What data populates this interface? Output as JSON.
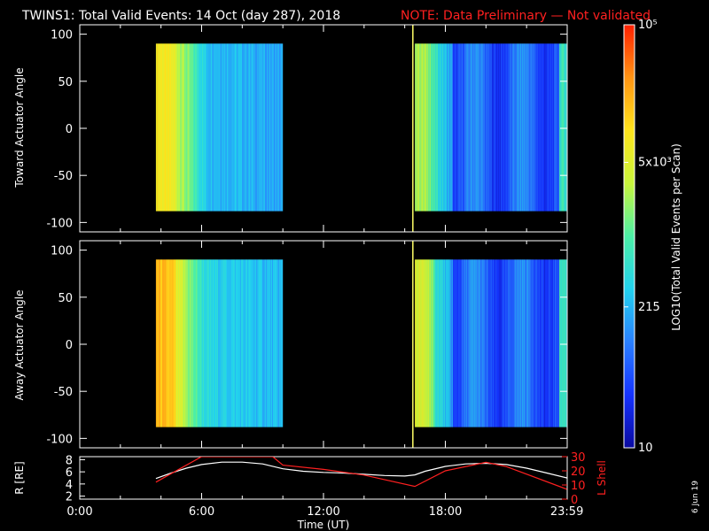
{
  "title": "TWINS1: Total Valid Events: 14 Oct (day 287), 2018",
  "note": "NOTE: Data Preliminary — Not validated",
  "date_stamp": "6 Jun 19",
  "colors": {
    "white": "#ffffff",
    "note_red": "#ff2020",
    "divider": "#ffff66"
  },
  "colorbar": {
    "label": "LOG10(Total Valid Events per Scan)",
    "ticks": [
      "10",
      "215",
      "5x10³",
      "10⁵"
    ],
    "scale": "log",
    "range": [
      10,
      100000
    ],
    "colormap": [
      "#0a0aa0",
      "#1533ff",
      "#2a80ff",
      "#22d2ee",
      "#4cf0a6",
      "#c8f53c",
      "#ffe41c",
      "#ff9414",
      "#ff2000"
    ]
  },
  "chart_data": [
    {
      "type": "heatmap",
      "ylabel": "Toward Actuator Angle",
      "ylim": [
        -110,
        110
      ],
      "yticks": [
        100,
        50,
        0,
        -50,
        -100
      ],
      "x_range_hours": [
        0,
        24
      ],
      "data_blocks": [
        {
          "start": "3:45",
          "end": "10:00",
          "angle_range": [
            -88,
            90
          ]
        },
        {
          "start": "16:30",
          "end": "23:59",
          "angle_range": [
            -88,
            90
          ]
        }
      ]
    },
    {
      "type": "heatmap",
      "ylabel": "Away Actuator Angle",
      "ylim": [
        -110,
        110
      ],
      "yticks": [
        100,
        50,
        0,
        -50,
        -100
      ],
      "x_range_hours": [
        0,
        24
      ],
      "data_blocks": [
        {
          "start": "3:45",
          "end": "10:00",
          "angle_range": [
            -88,
            90
          ]
        },
        {
          "start": "16:30",
          "end": "23:59",
          "angle_range": [
            -88,
            90
          ]
        }
      ]
    },
    {
      "type": "line",
      "ylabel_left": "R [RE]",
      "ylabel_right": "L Shell",
      "yticks_left": [
        8,
        6,
        4,
        2
      ],
      "yticks_right": [
        30,
        20,
        10,
        0
      ],
      "ylim_left": [
        1.5,
        8.5
      ],
      "ylim_right": [
        0,
        30
      ],
      "series": [
        {
          "name": "R [RE]",
          "x": [
            "3:45",
            "4:30",
            "5:15",
            "6:00",
            "7:00",
            "8:00",
            "9:00",
            "10:00",
            "11:00",
            "12:00",
            "13:00",
            "14:00",
            "15:00",
            "16:00",
            "16:30",
            "17:00",
            "18:00",
            "19:00",
            "20:00",
            "21:00",
            "22:00",
            "23:00",
            "23:59"
          ],
          "values": [
            4.9,
            5.8,
            6.6,
            7.2,
            7.6,
            7.6,
            7.3,
            6.5,
            6.1,
            5.9,
            5.8,
            5.6,
            5.4,
            5.3,
            5.5,
            6.1,
            6.9,
            7.3,
            7.4,
            7.2,
            6.6,
            5.8,
            5.0
          ]
        },
        {
          "name": "L Shell",
          "x": [
            "3:45",
            "6:00",
            "9:30",
            "10:00",
            "12:00",
            "14:00",
            "16:30",
            "18:00",
            "20:00",
            "21:00",
            "23:59"
          ],
          "values": [
            12,
            30,
            30,
            24,
            21,
            17,
            9,
            20,
            26,
            23,
            7
          ]
        }
      ]
    }
  ],
  "xaxis": {
    "label": "Time (UT)",
    "ticks": [
      "0:00",
      "6:00",
      "12:00",
      "18:00",
      "23:59"
    ]
  }
}
